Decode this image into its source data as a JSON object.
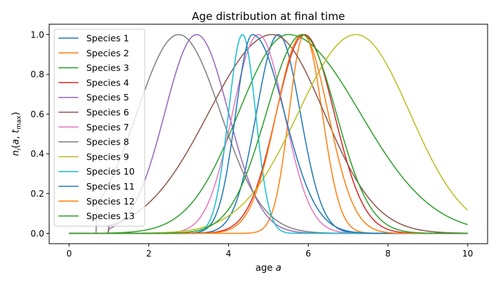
{
  "chart_data": {
    "type": "line",
    "title": "Age distribution at final time",
    "xlabel": "age a",
    "ylabel": "n_i(a, t_max)",
    "xlim": [
      -0.5,
      10.5
    ],
    "ylim": [
      -0.052,
      1.052
    ],
    "xticks": [
      0,
      2,
      4,
      6,
      8,
      10
    ],
    "yticks": [
      0.0,
      0.2,
      0.4,
      0.6,
      0.8,
      1.0
    ],
    "xtick_labels": [
      "0",
      "2",
      "4",
      "6",
      "8",
      "10"
    ],
    "ytick_labels": [
      "0.0",
      "0.2",
      "0.4",
      "0.6",
      "0.8",
      "1.0"
    ],
    "legend_position": "upper-left",
    "grid": false,
    "x_range": [
      0,
      10
    ],
    "series": [
      {
        "name": "Species 1",
        "color": "#1f77b4",
        "peak_age": 5.25,
        "sigma_left": 0.55,
        "sigma_right": 0.55,
        "start_age": 0
      },
      {
        "name": "Species 2",
        "color": "#ff7f0e",
        "peak_age": 5.9,
        "sigma_left": 0.38,
        "sigma_right": 0.45,
        "start_age": 0
      },
      {
        "name": "Species 3",
        "color": "#2ca02c",
        "peak_age": 5.5,
        "sigma_left": 1.25,
        "sigma_right": 1.8,
        "start_age": 0
      },
      {
        "name": "Species 4",
        "color": "#d62728",
        "peak_age": 5.9,
        "sigma_left": 0.7,
        "sigma_right": 0.75,
        "start_age": 0
      },
      {
        "name": "Species 5",
        "color": "#9467bd",
        "peak_age": 3.2,
        "sigma_left": 0.8,
        "sigma_right": 0.8,
        "start_age": 1.0
      },
      {
        "name": "Species 6",
        "color": "#8c564b",
        "peak_age": 5.1,
        "sigma_left": 1.6,
        "sigma_right": 1.3,
        "start_age": 1.0
      },
      {
        "name": "Species 7",
        "color": "#e377c2",
        "peak_age": 4.75,
        "sigma_left": 0.65,
        "sigma_right": 0.65,
        "start_age": 0
      },
      {
        "name": "Species 8",
        "color": "#7f7f7f",
        "peak_age": 2.75,
        "sigma_left": 1.05,
        "sigma_right": 1.05,
        "start_age": 0.7
      },
      {
        "name": "Species 9",
        "color": "#bcbd22",
        "peak_age": 7.2,
        "sigma_left": 1.45,
        "sigma_right": 1.35,
        "start_age": 0
      },
      {
        "name": "Species 10",
        "color": "#17becf",
        "peak_age": 4.35,
        "sigma_left": 0.35,
        "sigma_right": 0.33,
        "start_age": 0
      },
      {
        "name": "Species 11",
        "color": "#1f77b4",
        "peak_age": 4.6,
        "sigma_left": 0.42,
        "sigma_right": 0.8,
        "start_age": 0
      },
      {
        "name": "Species 12",
        "color": "#ff7f0e",
        "peak_age": 5.85,
        "sigma_left": 0.65,
        "sigma_right": 0.65,
        "start_age": 0
      },
      {
        "name": "Species 13",
        "color": "#2ca02c",
        "peak_age": 5.85,
        "sigma_left": 0.9,
        "sigma_right": 0.85,
        "start_age": 0
      }
    ]
  }
}
